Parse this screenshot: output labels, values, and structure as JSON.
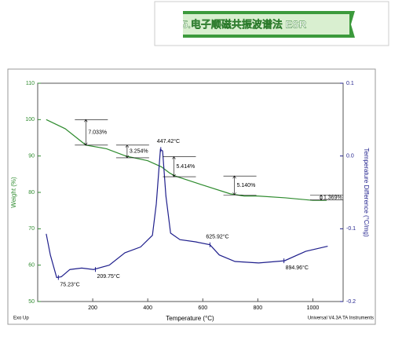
{
  "banner": {
    "title": "5.电子顺磁共振波谱法 ESR"
  },
  "chart_data": {
    "type": "line",
    "xlabel": "Temperature (°C)",
    "ylabel": "Weight (%)",
    "y2label": "Temperature Difference (°C/mg)",
    "corner_left": "Exo Up",
    "corner_right": "Universal V4.3A TA Instruments",
    "xlim": [
      0,
      1110
    ],
    "xticks": [
      200,
      400,
      600,
      800,
      1000
    ],
    "ylim": [
      50,
      110
    ],
    "yticks": [
      50,
      60,
      70,
      80,
      90,
      100,
      110
    ],
    "y2lim": [
      -0.2,
      0.1
    ],
    "y2ticks": [
      {
        "value": -0.2,
        "label": "-0.2"
      },
      {
        "value": -0.1,
        "label": "-0.1"
      },
      {
        "value": 0,
        "label": "0.0"
      },
      {
        "value": 0.1,
        "label": "0.1"
      }
    ],
    "series": [
      {
        "color": "#2e8b2e",
        "axis": "y",
        "x": [
          31,
          100,
          175,
          250,
          320,
          400,
          450,
          480,
          500,
          600,
          700,
          750,
          800,
          900,
          1000,
          1050
        ],
        "values": [
          100,
          97.5,
          93.0,
          92,
          90.0,
          88.7,
          87,
          85.3,
          84.5,
          82,
          79.6,
          79,
          79,
          78.5,
          77.8,
          77.8
        ]
      },
      {
        "color": "#1f1f8c",
        "axis": "y2",
        "x": [
          31,
          46,
          69,
          86,
          117,
          160,
          203,
          260,
          317,
          374,
          417,
          431,
          446,
          454,
          466,
          483,
          517,
          574,
          626,
          660,
          717,
          803,
          897,
          974,
          1054
        ],
        "values": [
          -0.107,
          -0.136,
          -0.167,
          -0.166,
          -0.156,
          -0.154,
          -0.156,
          -0.15,
          -0.133,
          -0.125,
          -0.109,
          -0.066,
          0.009,
          0.007,
          -0.055,
          -0.106,
          -0.115,
          -0.118,
          -0.122,
          -0.136,
          -0.145,
          -0.147,
          -0.144,
          -0.131,
          -0.124
        ]
      }
    ],
    "steps": [
      {
        "label": "7.033%",
        "x": 175,
        "from": 100,
        "to": 93
      },
      {
        "label": "3.254%",
        "x": 325,
        "from": 93,
        "to": 89.5
      },
      {
        "label": "5.414%",
        "x": 495,
        "from": 89.8,
        "to": 84.3
      },
      {
        "label": "5.140%",
        "x": 715,
        "from": 84.5,
        "to": 79.3
      },
      {
        "label": "1.369%",
        "x": 1030,
        "from": 79.3,
        "to": 77.9
      }
    ],
    "peaks": [
      {
        "label": "75.23°C",
        "x": 75.23,
        "y": -0.167
      },
      {
        "label": "209.75°C",
        "x": 209.75,
        "y": -0.156
      },
      {
        "label": "447.42°C",
        "x": 447.42,
        "y": 0.009
      },
      {
        "label": "625.92°C",
        "x": 625.92,
        "y": -0.122
      },
      {
        "label": "894.96°C",
        "x": 894.96,
        "y": -0.144
      }
    ]
  }
}
